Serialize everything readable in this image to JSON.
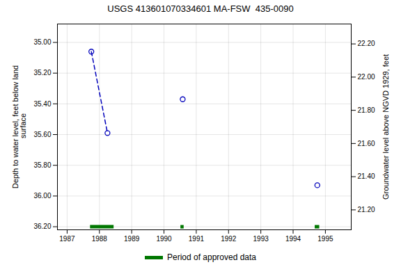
{
  "chart_data": {
    "type": "scatter",
    "title": "USGS 413601070334601 MA-FSW  435-0090",
    "ylabel": "Depth to water level, feet below land\n surface",
    "y2label": "Groundwater level above NGVD 1929, feet",
    "xlim": [
      1986.7,
      1995.8
    ],
    "xticks": [
      1987,
      1988,
      1989,
      1990,
      1991,
      1992,
      1993,
      1994,
      1995
    ],
    "ylim": [
      36.22,
      34.88
    ],
    "yticks": [
      {
        "value": 35.0,
        "label": "35.00"
      },
      {
        "value": 35.2,
        "label": "35.20"
      },
      {
        "value": 35.4,
        "label": "35.40"
      },
      {
        "value": 35.6,
        "label": "35.60"
      },
      {
        "value": 35.8,
        "label": "35.80"
      },
      {
        "value": 36.0,
        "label": "36.00"
      },
      {
        "value": 36.2,
        "label": "36.20"
      }
    ],
    "y2lim": [
      21.08,
      22.32
    ],
    "y2ticks": [
      {
        "value": 22.2,
        "label": "22.20"
      },
      {
        "value": 22.0,
        "label": "22.00"
      },
      {
        "value": 21.8,
        "label": "21.80"
      },
      {
        "value": 21.6,
        "label": "21.60"
      },
      {
        "value": 21.4,
        "label": "21.40"
      },
      {
        "value": 21.2,
        "label": "21.20"
      }
    ],
    "grid": true,
    "legend": "bottom",
    "series": [
      {
        "type": "line",
        "x": [
          1987.75,
          1988.25
        ],
        "values": [
          35.06,
          35.59
        ],
        "color": "#0000bb",
        "line_style": "dashed"
      },
      {
        "type": "scatter",
        "x": [
          1987.75,
          1988.25,
          1990.58,
          1994.75
        ],
        "values": [
          35.06,
          35.59,
          35.37,
          35.93
        ],
        "color": "#0000bb",
        "marker": "circle"
      },
      {
        "name": "Period of approved data",
        "type": "span",
        "x_start": [
          1987.72,
          1990.52,
          1994.68
        ],
        "x_end": [
          1988.45,
          1990.62,
          1994.82
        ],
        "values": [
          36.2,
          36.2,
          36.2
        ],
        "color": "#007700"
      }
    ]
  }
}
